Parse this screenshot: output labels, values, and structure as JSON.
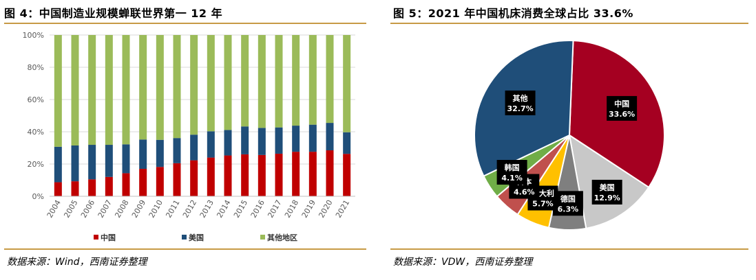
{
  "left": {
    "title": "图 4：中国制造业规模蝉联世界第一 12 年",
    "source": "数据来源：Wind，西南证券整理"
  },
  "right": {
    "title": "图 5：2021 年中国机床消费全球占比 33.6%",
    "source": "数据来源：VDW，西南证券整理"
  },
  "chart_data": [
    {
      "type": "bar",
      "stacked": true,
      "categories": [
        "2004",
        "2005",
        "2006",
        "2007",
        "2008",
        "2009",
        "2010",
        "2011",
        "2012",
        "2013",
        "2014",
        "2015",
        "2016",
        "2017",
        "2018",
        "2019",
        "2020",
        "2021"
      ],
      "series": [
        {
          "name": "中国",
          "color": "#c00000",
          "values": [
            8.7,
            9.3,
            10.5,
            12.0,
            14.3,
            17.0,
            18.2,
            20.5,
            22.3,
            24.0,
            25.3,
            26.0,
            25.6,
            26.4,
            27.6,
            27.6,
            28.5,
            26.3
          ]
        },
        {
          "name": "美国",
          "color": "#1f4e79",
          "values": [
            22.0,
            22.2,
            21.4,
            19.9,
            17.9,
            18.2,
            16.8,
            15.6,
            15.9,
            16.3,
            15.8,
            17.3,
            16.8,
            16.3,
            16.2,
            16.8,
            17.0,
            13.4
          ]
        },
        {
          "name": "其他地区",
          "color": "#9bbb59",
          "values": [
            69.3,
            68.5,
            68.1,
            68.1,
            67.8,
            64.8,
            65.0,
            63.9,
            61.8,
            59.7,
            58.9,
            56.7,
            57.6,
            57.3,
            56.2,
            55.6,
            54.5,
            60.3
          ]
        }
      ],
      "ylim": [
        0,
        100
      ],
      "yticks": [
        "0%",
        "20%",
        "40%",
        "60%",
        "80%",
        "100%"
      ],
      "legend_position": "bottom",
      "grid": true
    },
    {
      "type": "pie",
      "labels": [
        "中国",
        "美国",
        "德国",
        "意大利",
        "日本",
        "韩国",
        "其他"
      ],
      "values": [
        33.6,
        12.9,
        6.3,
        5.7,
        4.6,
        4.1,
        32.7
      ],
      "value_labels": [
        "33.6%",
        "12.9%",
        "6.3%",
        "5.7%",
        "4.6%",
        "4.1%",
        "32.7%"
      ],
      "colors": [
        "#a50021",
        "#c8c8c8",
        "#7f7f7f",
        "#ffc000",
        "#c0504d",
        "#70ad47",
        "#1f4e79"
      ]
    }
  ]
}
